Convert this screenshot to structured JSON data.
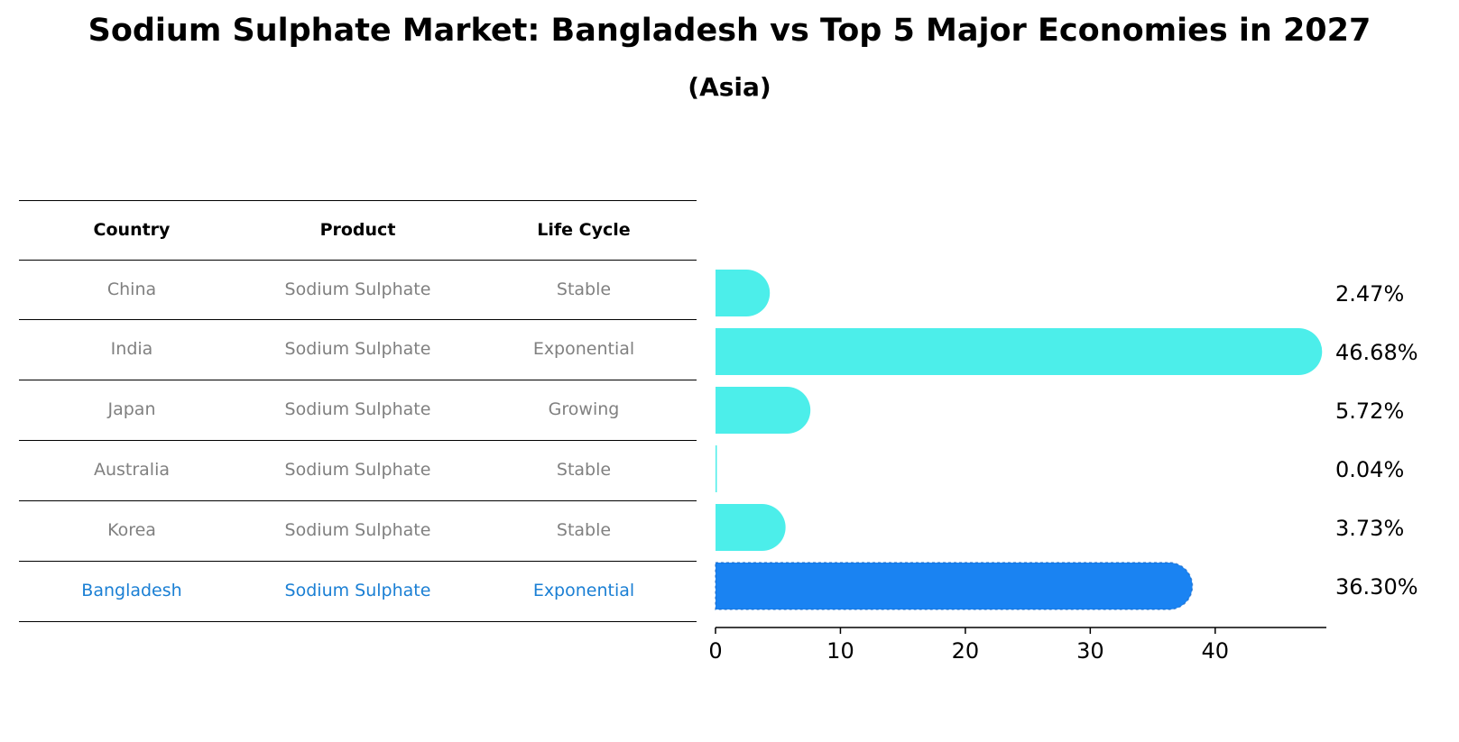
{
  "title": "Sodium Sulphate Market: Bangladesh vs Top 5 Major Economies in 2027",
  "subtitle": "(Asia)",
  "table": {
    "headers": [
      "Country",
      "Product",
      "Life Cycle"
    ],
    "rows": [
      {
        "country": "China",
        "product": "Sodium Sulphate",
        "life_cycle": "Stable"
      },
      {
        "country": "India",
        "product": "Sodium Sulphate",
        "life_cycle": "Exponential"
      },
      {
        "country": "Japan",
        "product": "Sodium Sulphate",
        "life_cycle": "Growing"
      },
      {
        "country": "Australia",
        "product": "Sodium Sulphate",
        "life_cycle": "Stable"
      },
      {
        "country": "Korea",
        "product": "Sodium Sulphate",
        "life_cycle": "Stable"
      },
      {
        "country": "Bangladesh",
        "product": "Sodium Sulphate",
        "life_cycle": "Exponential"
      }
    ]
  },
  "chart_data": {
    "type": "bar",
    "orientation": "horizontal",
    "categories": [
      "China",
      "India",
      "Japan",
      "Australia",
      "Korea",
      "Bangladesh"
    ],
    "values": [
      2.47,
      46.68,
      5.72,
      0.04,
      3.73,
      36.3
    ],
    "value_labels": [
      "2.47%",
      "46.68%",
      "5.72%",
      "0.04%",
      "3.73%",
      "36.30%"
    ],
    "xlim": [
      0,
      48.9
    ],
    "xticks": [
      0,
      10,
      20,
      30,
      40
    ],
    "xlabel": "",
    "ylabel": "",
    "grid": false,
    "colors": {
      "default": "#4ceeea",
      "highlight": "#1a83f2"
    },
    "highlight_category": "Bangladesh"
  },
  "colors": {
    "table_text": "#808080",
    "highlight_text": "#1a7fd4"
  }
}
